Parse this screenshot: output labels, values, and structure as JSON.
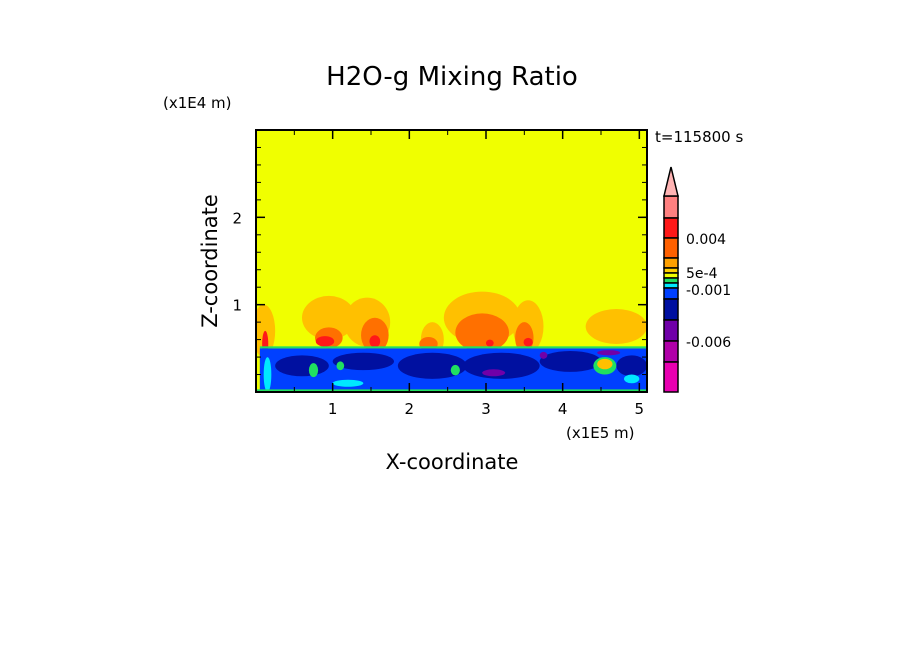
{
  "chart_data": {
    "type": "heatmap",
    "title": "H2O-g Mixing Ratio",
    "xlabel": "X-coordinate",
    "ylabel": "Z-coordinate",
    "x_unit": "(x1E5 m)",
    "y_unit": "(x1E4 m)",
    "time_label": "t=115800 s",
    "xlim": [
      0,
      5.1
    ],
    "ylim": [
      0,
      3.0
    ],
    "x_ticks": [
      "1",
      "2",
      "3",
      "4",
      "5"
    ],
    "y_ticks": [
      "1",
      "2"
    ],
    "x_tick_values": [
      1,
      2,
      3,
      4,
      5
    ],
    "y_tick_values": [
      1,
      2
    ],
    "colorbar": {
      "colors": [
        "#ff8080",
        "#ff1818",
        "#ff6000",
        "#ffa000",
        "#ffd000",
        "#f0ff00",
        "#20e060",
        "#00e8ff",
        "#0040ff",
        "#0010a0",
        "#7000a8",
        "#b000a8",
        "#e800b0"
      ],
      "overflow_color": "#ffb4b4",
      "labels": [
        "0.004",
        "5e-4",
        "-0.001",
        "-0.006"
      ]
    },
    "field_description_colors": {
      "background": "#f0ff00",
      "light_orange": "#ffc000",
      "orange": "#ff7000",
      "red": "#ff1818",
      "blue": "#0040ff",
      "dark_blue": "#0010a0",
      "purple": "#7000a8",
      "cyan": "#00e8ff",
      "green": "#20e060"
    }
  }
}
